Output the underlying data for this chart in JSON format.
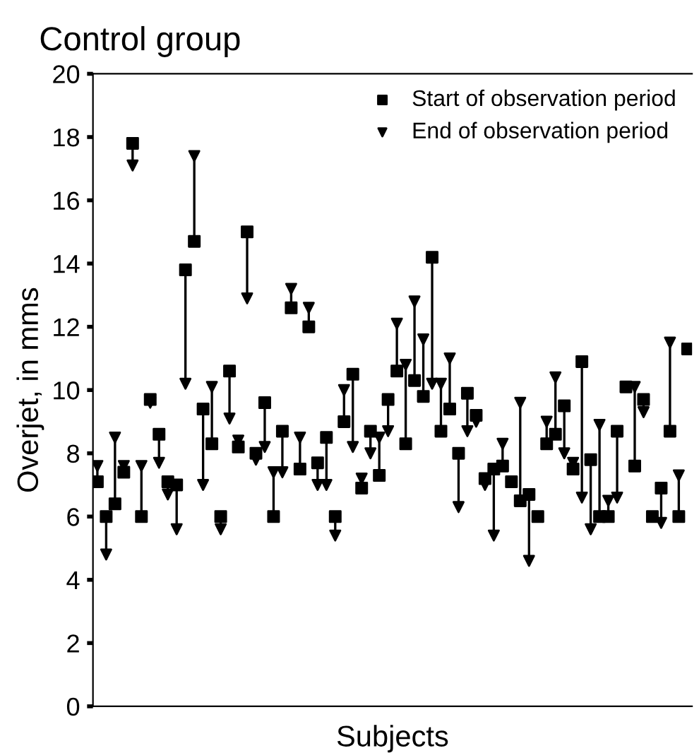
{
  "chart_data": {
    "type": "scatter",
    "title": "Control group",
    "xlabel": "Subjects",
    "ylabel": "Overjet, in mms",
    "categories": [
      null,
      null,
      null,
      null,
      null,
      null,
      null,
      null,
      null,
      null,
      null,
      null,
      null,
      null,
      null,
      null,
      null,
      null,
      null,
      null,
      null,
      null,
      null,
      null,
      null,
      null,
      null,
      null,
      null,
      null,
      null,
      null,
      null,
      null,
      null,
      null,
      null,
      null,
      null,
      null,
      null,
      null,
      null,
      null,
      null,
      null,
      null,
      null,
      null,
      null,
      null,
      null,
      null,
      null,
      null,
      null,
      null,
      null,
      null,
      null,
      null,
      null,
      null,
      null,
      null,
      null,
      null,
      null
    ],
    "series": [
      {
        "name": "Start of observation period",
        "color": "#000000",
        "marker": "square",
        "values": [
          7.1,
          6.0,
          6.4,
          7.4,
          17.8,
          6.0,
          9.7,
          8.6,
          7.1,
          7.0,
          13.8,
          14.7,
          9.4,
          8.3,
          6.0,
          10.6,
          8.2,
          15.0,
          8.0,
          9.6,
          6.0,
          8.7,
          12.6,
          7.5,
          12.0,
          7.7,
          8.5,
          6.0,
          9.0,
          10.5,
          6.9,
          8.7,
          7.3,
          9.7,
          10.6,
          8.3,
          10.3,
          9.8,
          14.2,
          8.7,
          9.4,
          8.0,
          9.9,
          9.2,
          7.2,
          7.5,
          7.6,
          7.1,
          6.5,
          6.7,
          6.0,
          8.3,
          8.6,
          9.5,
          7.5,
          10.9,
          7.8,
          6.0,
          6.0,
          8.7,
          10.1,
          7.6,
          9.7,
          6.0,
          6.9,
          8.7,
          6.0,
          11.3
        ]
      },
      {
        "name": "End of observation period",
        "color": "#000000",
        "marker": "triangle",
        "values": [
          7.6,
          4.8,
          8.5,
          7.6,
          17.1,
          7.6,
          9.6,
          7.7,
          6.7,
          5.6,
          10.2,
          17.4,
          7.0,
          10.1,
          5.6,
          9.1,
          8.4,
          12.9,
          7.8,
          8.2,
          7.4,
          7.4,
          13.2,
          8.5,
          12.6,
          7.0,
          7.0,
          5.4,
          10.0,
          8.2,
          7.2,
          8.0,
          8.5,
          8.7,
          12.1,
          10.8,
          12.8,
          11.6,
          10.2,
          10.2,
          11.0,
          6.3,
          8.7,
          9.0,
          7.0,
          5.4,
          8.3,
          null,
          9.6,
          4.6,
          null,
          9.0,
          10.4,
          8.0,
          7.7,
          6.6,
          5.6,
          8.9,
          6.5,
          6.6,
          null,
          10.1,
          9.3,
          null,
          5.8,
          11.5,
          7.3,
          null
        ]
      }
    ],
    "ylim": [
      0,
      20
    ],
    "yticks": [
      0,
      2,
      4,
      6,
      8,
      10,
      12,
      14,
      16,
      18,
      20
    ],
    "legend": "top right",
    "grid": false
  }
}
